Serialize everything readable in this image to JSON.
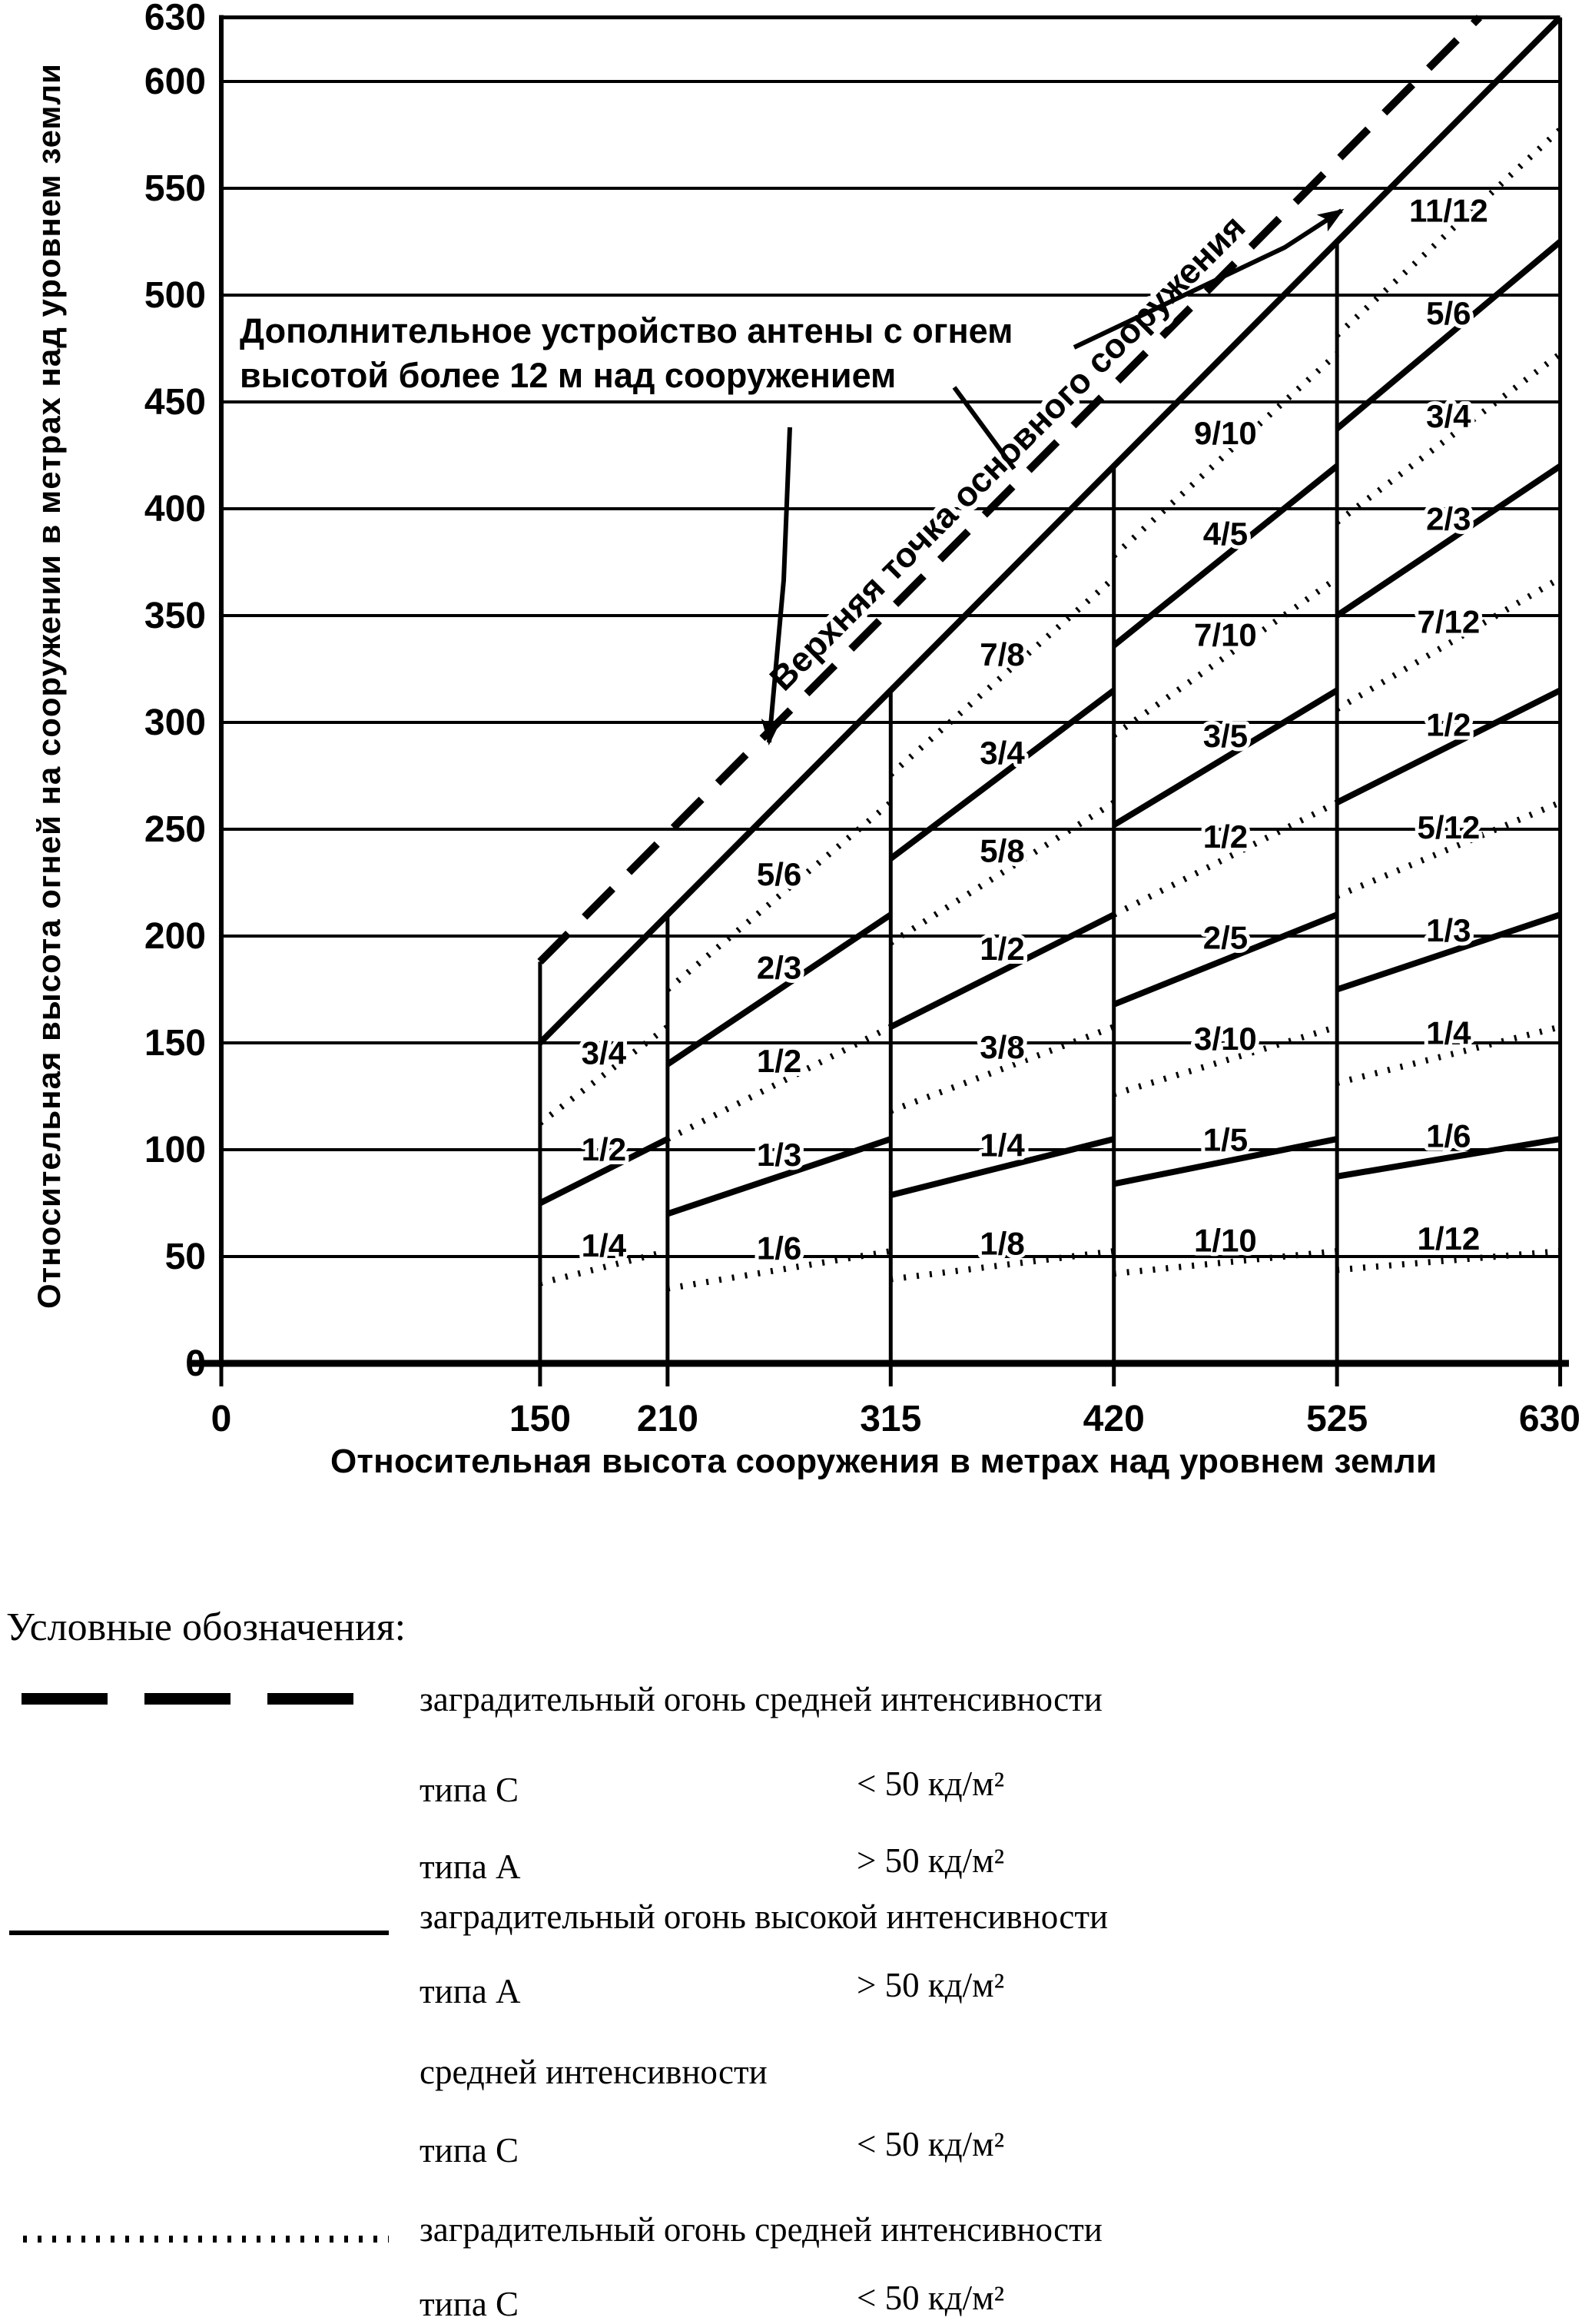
{
  "chart_data": {
    "type": "line",
    "title": "",
    "xlabel": "Относительная высота сооружения в метрах над уровнем земли",
    "ylabel": "Относительная высота огней на сооружении в метрах над уровнем земли",
    "xlim": [
      0,
      630
    ],
    "ylim": [
      0,
      630
    ],
    "x_ticks": [
      0,
      150,
      210,
      315,
      420,
      525,
      630
    ],
    "y_ticks": [
      0,
      50,
      100,
      150,
      200,
      250,
      300,
      350,
      400,
      450,
      500,
      550,
      600,
      630
    ],
    "h_gridlines": [
      50,
      100,
      150,
      200,
      250,
      300,
      350,
      400,
      450,
      500,
      550,
      600
    ],
    "v_gridlines": [
      {
        "x": 150,
        "top": 188
      },
      {
        "x": 210,
        "top": 210
      },
      {
        "x": 315,
        "top": 315
      },
      {
        "x": 420,
        "top": 420
      },
      {
        "x": 525,
        "top": 525
      }
    ],
    "diagonal_solid": {
      "from": [
        150,
        150
      ],
      "to": [
        630,
        630
      ],
      "label": "Верхняя точка основного сооружения"
    },
    "diagonal_dashed": {
      "from": [
        150,
        188
      ],
      "to": [
        592,
        630
      ]
    },
    "annotation": {
      "line1": "Дополнительное устройство антены с огнем",
      "line2": "высотой более 12 м над сооружением"
    },
    "bands": [
      {
        "x0": 150,
        "x1": 210,
        "lines": [
          {
            "label": "1/4",
            "style": "dotted"
          },
          {
            "label": "1/2",
            "style": "solid"
          },
          {
            "label": "3/4",
            "style": "dotted"
          }
        ]
      },
      {
        "x0": 210,
        "x1": 315,
        "lines": [
          {
            "label": "1/6",
            "style": "dotted"
          },
          {
            "label": "1/3",
            "style": "solid"
          },
          {
            "label": "1/2",
            "style": "dotted"
          },
          {
            "label": "2/3",
            "style": "solid"
          },
          {
            "label": "5/6",
            "style": "dotted"
          }
        ]
      },
      {
        "x0": 315,
        "x1": 420,
        "lines": [
          {
            "label": "1/8",
            "style": "dotted"
          },
          {
            "label": "1/4",
            "style": "solid"
          },
          {
            "label": "3/8",
            "style": "dotted"
          },
          {
            "label": "1/2",
            "style": "solid"
          },
          {
            "label": "5/8",
            "style": "dotted"
          },
          {
            "label": "3/4",
            "style": "solid"
          },
          {
            "label": "7/8",
            "style": "dotted"
          }
        ]
      },
      {
        "x0": 420,
        "x1": 525,
        "lines": [
          {
            "label": "1/10",
            "style": "dotted"
          },
          {
            "label": "1/5",
            "style": "solid"
          },
          {
            "label": "3/10",
            "style": "dotted"
          },
          {
            "label": "2/5",
            "style": "solid"
          },
          {
            "label": "1/2",
            "style": "dotted"
          },
          {
            "label": "3/5",
            "style": "solid"
          },
          {
            "label": "7/10",
            "style": "dotted"
          },
          {
            "label": "4/5",
            "style": "solid"
          },
          {
            "label": "9/10",
            "style": "dotted"
          }
        ]
      },
      {
        "x0": 525,
        "x1": 630,
        "lines": [
          {
            "label": "1/12",
            "style": "dotted"
          },
          {
            "label": "1/6",
            "style": "solid"
          },
          {
            "label": "1/4",
            "style": "dotted"
          },
          {
            "label": "1/3",
            "style": "solid"
          },
          {
            "label": "5/12",
            "style": "dotted"
          },
          {
            "label": "1/2",
            "style": "solid"
          },
          {
            "label": "7/12",
            "style": "dotted"
          },
          {
            "label": "2/3",
            "style": "solid"
          },
          {
            "label": "3/4",
            "style": "dotted"
          },
          {
            "label": "5/6",
            "style": "solid"
          },
          {
            "label": "11/12",
            "style": "dotted"
          }
        ]
      }
    ],
    "line_color": "#000000",
    "grid_on": true
  },
  "legend": {
    "title": "Условные обозначения:",
    "rows": [
      {
        "style": "dashed",
        "label": "заградительный огонь средней интенсивности",
        "subs": [
          {
            "name": "типа С",
            "value": "< 50 кд/м²"
          },
          {
            "name": "типа А",
            "value": "> 50 кд/м²"
          }
        ]
      },
      {
        "style": "solid",
        "label": "заградительный огонь высокой интенсивности",
        "subs": [
          {
            "name": "типа А",
            "value": "> 50 кд/м²"
          },
          {
            "name": "средней интенсивности",
            "value": ""
          },
          {
            "name": "типа С",
            "value": "< 50 кд/м²"
          }
        ]
      },
      {
        "style": "dotted",
        "label": "заградительный огонь средней интенсивности",
        "subs": [
          {
            "name": "типа С",
            "value": "< 50 кд/м²"
          }
        ]
      }
    ]
  }
}
